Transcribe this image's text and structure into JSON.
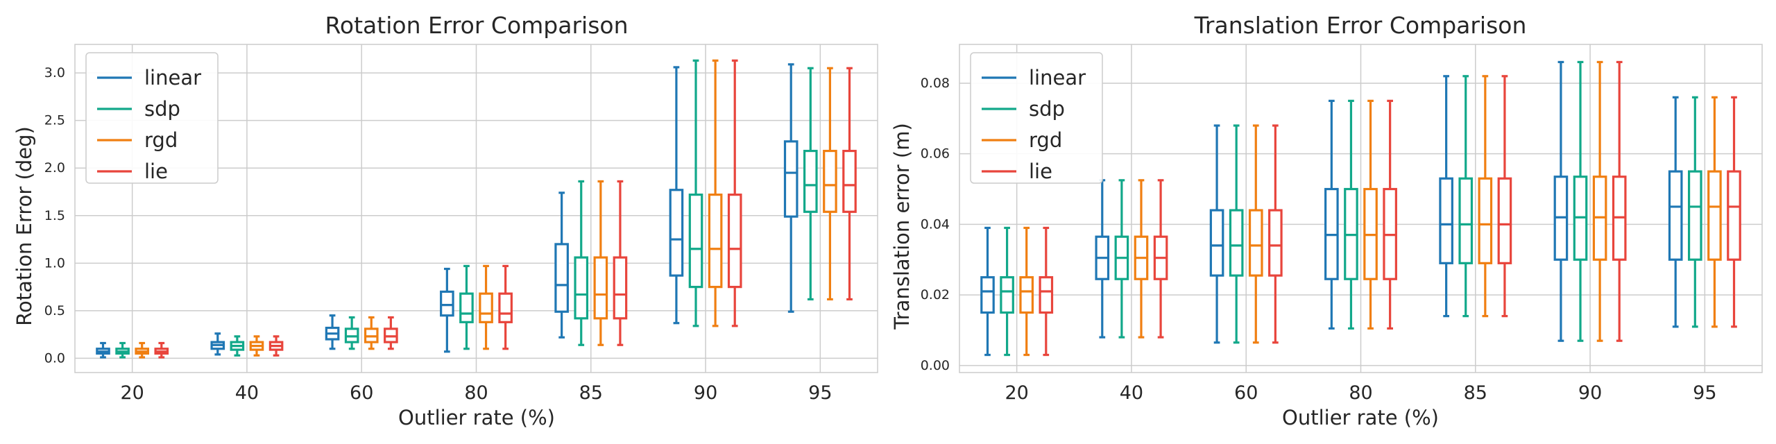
{
  "chart_data": [
    {
      "type": "box",
      "title": "Rotation Error Comparison",
      "xlabel": "Outlier rate (%)",
      "ylabel": "Rotation Error (deg)",
      "ylim": [
        -0.15,
        3.3
      ],
      "yticks": [
        0.0,
        0.5,
        1.0,
        1.5,
        2.0,
        2.5,
        3.0
      ],
      "ytick_labels": [
        "0.0",
        "0.5",
        "1.0",
        "1.5",
        "2.0",
        "2.5",
        "3.0"
      ],
      "categories": [
        "20",
        "40",
        "60",
        "80",
        "85",
        "90",
        "95"
      ],
      "grid": true,
      "legend": "top-left",
      "series": [
        {
          "name": "linear",
          "color": "#1f77b4",
          "boxes": [
            {
              "min": 0.01,
              "q1": 0.05,
              "median": 0.07,
              "q3": 0.1,
              "max": 0.16
            },
            {
              "min": 0.04,
              "q1": 0.1,
              "median": 0.14,
              "q3": 0.17,
              "max": 0.26
            },
            {
              "min": 0.1,
              "q1": 0.2,
              "median": 0.26,
              "q3": 0.32,
              "max": 0.45
            },
            {
              "min": 0.07,
              "q1": 0.45,
              "median": 0.56,
              "q3": 0.7,
              "max": 0.94
            },
            {
              "min": 0.22,
              "q1": 0.49,
              "median": 0.77,
              "q3": 1.2,
              "max": 1.74
            },
            {
              "min": 0.37,
              "q1": 0.87,
              "median": 1.25,
              "q3": 1.77,
              "max": 3.06
            },
            {
              "min": 0.49,
              "q1": 1.49,
              "median": 1.95,
              "q3": 2.28,
              "max": 3.09
            }
          ]
        },
        {
          "name": "sdp",
          "color": "#12a88a",
          "boxes": [
            {
              "min": 0.01,
              "q1": 0.05,
              "median": 0.07,
              "q3": 0.1,
              "max": 0.16
            },
            {
              "min": 0.03,
              "q1": 0.09,
              "median": 0.13,
              "q3": 0.17,
              "max": 0.23
            },
            {
              "min": 0.1,
              "q1": 0.17,
              "median": 0.23,
              "q3": 0.31,
              "max": 0.43
            },
            {
              "min": 0.1,
              "q1": 0.38,
              "median": 0.47,
              "q3": 0.68,
              "max": 0.97
            },
            {
              "min": 0.14,
              "q1": 0.42,
              "median": 0.67,
              "q3": 1.06,
              "max": 1.86
            },
            {
              "min": 0.34,
              "q1": 0.75,
              "median": 1.15,
              "q3": 1.72,
              "max": 3.13
            },
            {
              "min": 0.62,
              "q1": 1.54,
              "median": 1.82,
              "q3": 2.18,
              "max": 3.05
            }
          ]
        },
        {
          "name": "rgd",
          "color": "#f07f12",
          "boxes": [
            {
              "min": 0.01,
              "q1": 0.05,
              "median": 0.07,
              "q3": 0.1,
              "max": 0.16
            },
            {
              "min": 0.03,
              "q1": 0.09,
              "median": 0.13,
              "q3": 0.17,
              "max": 0.23
            },
            {
              "min": 0.1,
              "q1": 0.17,
              "median": 0.23,
              "q3": 0.31,
              "max": 0.43
            },
            {
              "min": 0.1,
              "q1": 0.38,
              "median": 0.47,
              "q3": 0.68,
              "max": 0.97
            },
            {
              "min": 0.14,
              "q1": 0.42,
              "median": 0.67,
              "q3": 1.06,
              "max": 1.86
            },
            {
              "min": 0.34,
              "q1": 0.75,
              "median": 1.15,
              "q3": 1.72,
              "max": 3.13
            },
            {
              "min": 0.62,
              "q1": 1.54,
              "median": 1.82,
              "q3": 2.18,
              "max": 3.05
            }
          ]
        },
        {
          "name": "lie",
          "color": "#e8453c",
          "boxes": [
            {
              "min": 0.01,
              "q1": 0.05,
              "median": 0.07,
              "q3": 0.1,
              "max": 0.16
            },
            {
              "min": 0.03,
              "q1": 0.09,
              "median": 0.13,
              "q3": 0.17,
              "max": 0.23
            },
            {
              "min": 0.1,
              "q1": 0.17,
              "median": 0.23,
              "q3": 0.31,
              "max": 0.43
            },
            {
              "min": 0.1,
              "q1": 0.38,
              "median": 0.47,
              "q3": 0.68,
              "max": 0.97
            },
            {
              "min": 0.14,
              "q1": 0.42,
              "median": 0.67,
              "q3": 1.06,
              "max": 1.86
            },
            {
              "min": 0.34,
              "q1": 0.75,
              "median": 1.15,
              "q3": 1.72,
              "max": 3.13
            },
            {
              "min": 0.62,
              "q1": 1.54,
              "median": 1.82,
              "q3": 2.18,
              "max": 3.05
            }
          ]
        }
      ]
    },
    {
      "type": "box",
      "title": "Translation Error Comparison",
      "xlabel": "Outlier rate (%)",
      "ylabel": "Translation error (m)",
      "ylim": [
        -0.002,
        0.091
      ],
      "yticks": [
        0.0,
        0.02,
        0.04,
        0.06,
        0.08
      ],
      "ytick_labels": [
        "0.00",
        "0.02",
        "0.04",
        "0.06",
        "0.08"
      ],
      "categories": [
        "20",
        "40",
        "60",
        "80",
        "85",
        "90",
        "95"
      ],
      "grid": true,
      "legend": "top-left",
      "series": [
        {
          "name": "linear",
          "color": "#1f77b4",
          "boxes": [
            {
              "min": 0.003,
              "q1": 0.015,
              "median": 0.021,
              "q3": 0.025,
              "max": 0.039
            },
            {
              "min": 0.008,
              "q1": 0.0245,
              "median": 0.0305,
              "q3": 0.0365,
              "max": 0.0525
            },
            {
              "min": 0.0065,
              "q1": 0.0255,
              "median": 0.034,
              "q3": 0.044,
              "max": 0.068
            },
            {
              "min": 0.0105,
              "q1": 0.0245,
              "median": 0.037,
              "q3": 0.05,
              "max": 0.075
            },
            {
              "min": 0.014,
              "q1": 0.029,
              "median": 0.04,
              "q3": 0.053,
              "max": 0.082
            },
            {
              "min": 0.007,
              "q1": 0.03,
              "median": 0.042,
              "q3": 0.0535,
              "max": 0.086
            },
            {
              "min": 0.011,
              "q1": 0.03,
              "median": 0.045,
              "q3": 0.055,
              "max": 0.076
            }
          ]
        },
        {
          "name": "sdp",
          "color": "#12a88a",
          "boxes": [
            {
              "min": 0.003,
              "q1": 0.015,
              "median": 0.021,
              "q3": 0.025,
              "max": 0.039
            },
            {
              "min": 0.008,
              "q1": 0.0245,
              "median": 0.0305,
              "q3": 0.0365,
              "max": 0.0525
            },
            {
              "min": 0.0065,
              "q1": 0.0255,
              "median": 0.034,
              "q3": 0.044,
              "max": 0.068
            },
            {
              "min": 0.0105,
              "q1": 0.0245,
              "median": 0.037,
              "q3": 0.05,
              "max": 0.075
            },
            {
              "min": 0.014,
              "q1": 0.029,
              "median": 0.04,
              "q3": 0.053,
              "max": 0.082
            },
            {
              "min": 0.007,
              "q1": 0.03,
              "median": 0.042,
              "q3": 0.0535,
              "max": 0.086
            },
            {
              "min": 0.011,
              "q1": 0.03,
              "median": 0.045,
              "q3": 0.055,
              "max": 0.076
            }
          ]
        },
        {
          "name": "rgd",
          "color": "#f07f12",
          "boxes": [
            {
              "min": 0.003,
              "q1": 0.015,
              "median": 0.021,
              "q3": 0.025,
              "max": 0.039
            },
            {
              "min": 0.008,
              "q1": 0.0245,
              "median": 0.0305,
              "q3": 0.0365,
              "max": 0.0525
            },
            {
              "min": 0.0065,
              "q1": 0.0255,
              "median": 0.034,
              "q3": 0.044,
              "max": 0.068
            },
            {
              "min": 0.0105,
              "q1": 0.0245,
              "median": 0.037,
              "q3": 0.05,
              "max": 0.075
            },
            {
              "min": 0.014,
              "q1": 0.029,
              "median": 0.04,
              "q3": 0.053,
              "max": 0.082
            },
            {
              "min": 0.007,
              "q1": 0.03,
              "median": 0.042,
              "q3": 0.0535,
              "max": 0.086
            },
            {
              "min": 0.011,
              "q1": 0.03,
              "median": 0.045,
              "q3": 0.055,
              "max": 0.076
            }
          ]
        },
        {
          "name": "lie",
          "color": "#e8453c",
          "boxes": [
            {
              "min": 0.003,
              "q1": 0.015,
              "median": 0.021,
              "q3": 0.025,
              "max": 0.039
            },
            {
              "min": 0.008,
              "q1": 0.0245,
              "median": 0.0305,
              "q3": 0.0365,
              "max": 0.0525
            },
            {
              "min": 0.0065,
              "q1": 0.0255,
              "median": 0.034,
              "q3": 0.044,
              "max": 0.068
            },
            {
              "min": 0.0105,
              "q1": 0.0245,
              "median": 0.037,
              "q3": 0.05,
              "max": 0.075
            },
            {
              "min": 0.014,
              "q1": 0.029,
              "median": 0.04,
              "q3": 0.053,
              "max": 0.082
            },
            {
              "min": 0.007,
              "q1": 0.03,
              "median": 0.042,
              "q3": 0.0535,
              "max": 0.086
            },
            {
              "min": 0.011,
              "q1": 0.03,
              "median": 0.045,
              "q3": 0.055,
              "max": 0.076
            }
          ]
        }
      ]
    }
  ]
}
